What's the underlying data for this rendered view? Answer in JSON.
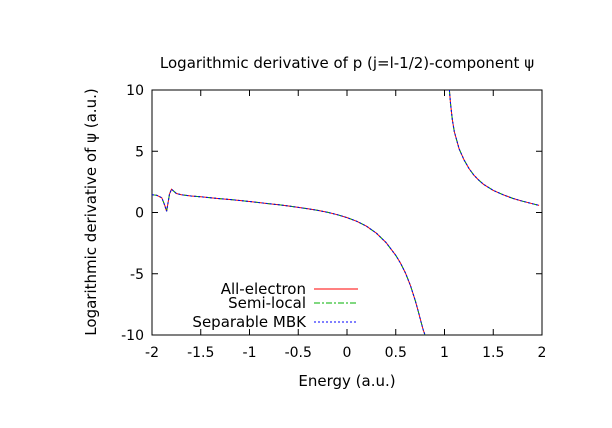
{
  "chart_data": {
    "type": "line",
    "title": "Logarithmic derivative of p (j=l-1/2)-component ψ",
    "xlabel": "Energy (a.u.)",
    "ylabel": "Logarithmic derivative of ψ (a.u.)",
    "xlim": [
      -2,
      2
    ],
    "ylim": [
      -10,
      10
    ],
    "xticks": [
      "-2",
      "-1.5",
      "-1",
      "-0.5",
      "0",
      "0.5",
      "1",
      "1.5",
      "2"
    ],
    "yticks": [
      "10",
      "5",
      "0",
      "-5",
      "-10"
    ],
    "grid": false,
    "legend_position": "bottom-left",
    "x": [
      -2.0,
      -1.95,
      -1.9,
      -1.87,
      -1.85,
      -1.82,
      -1.8,
      -1.75,
      -1.7,
      -1.6,
      -1.5,
      -1.4,
      -1.3,
      -1.2,
      -1.1,
      -1.0,
      -0.9,
      -0.8,
      -0.7,
      -0.6,
      -0.5,
      -0.4,
      -0.3,
      -0.2,
      -0.1,
      0.0,
      0.1,
      0.2,
      0.3,
      0.4,
      0.5,
      0.55,
      0.6,
      0.65,
      0.7,
      0.73,
      0.76,
      0.78,
      0.8,
      0.81,
      1.05,
      1.06,
      1.08,
      1.1,
      1.15,
      1.2,
      1.25,
      1.3,
      1.35,
      1.4,
      1.5,
      1.6,
      1.7,
      1.8,
      1.9,
      1.97
    ],
    "series": [
      {
        "name": "All-electron",
        "color": "#ff0000",
        "values": [
          1.45,
          1.4,
          1.2,
          0.6,
          0.1,
          1.5,
          1.9,
          1.55,
          1.45,
          1.35,
          1.28,
          1.2,
          1.13,
          1.06,
          0.98,
          0.9,
          0.81,
          0.72,
          0.63,
          0.53,
          0.42,
          0.3,
          0.17,
          0.02,
          -0.18,
          -0.42,
          -0.72,
          -1.12,
          -1.68,
          -2.45,
          -3.5,
          -4.15,
          -4.95,
          -5.95,
          -7.2,
          -8.05,
          -8.95,
          -9.55,
          -10.0,
          null,
          10.0,
          9.0,
          7.6,
          6.6,
          5.2,
          4.3,
          3.6,
          3.05,
          2.65,
          2.3,
          1.8,
          1.45,
          1.15,
          0.92,
          0.72,
          0.58
        ]
      },
      {
        "name": "Semi-local",
        "color": "#00b000",
        "values": [
          1.45,
          1.4,
          1.2,
          0.6,
          0.1,
          1.5,
          1.9,
          1.55,
          1.45,
          1.35,
          1.28,
          1.2,
          1.13,
          1.06,
          0.98,
          0.9,
          0.81,
          0.72,
          0.63,
          0.53,
          0.42,
          0.3,
          0.17,
          0.02,
          -0.18,
          -0.42,
          -0.72,
          -1.12,
          -1.68,
          -2.45,
          -3.5,
          -4.15,
          -4.95,
          -5.95,
          -7.2,
          -8.05,
          -8.95,
          -9.55,
          -10.0,
          null,
          10.0,
          9.0,
          7.6,
          6.6,
          5.2,
          4.3,
          3.6,
          3.05,
          2.65,
          2.3,
          1.8,
          1.45,
          1.15,
          0.92,
          0.72,
          0.58
        ]
      },
      {
        "name": "Separable MBK",
        "color": "#0000ff",
        "values": [
          1.45,
          1.4,
          1.2,
          0.6,
          0.1,
          1.5,
          1.9,
          1.55,
          1.45,
          1.35,
          1.28,
          1.2,
          1.13,
          1.06,
          0.98,
          0.9,
          0.81,
          0.72,
          0.63,
          0.53,
          0.42,
          0.3,
          0.17,
          0.02,
          -0.18,
          -0.42,
          -0.72,
          -1.12,
          -1.68,
          -2.45,
          -3.5,
          -4.15,
          -4.95,
          -5.95,
          -7.2,
          -8.05,
          -8.95,
          -9.55,
          -10.0,
          null,
          10.0,
          9.0,
          7.6,
          6.6,
          5.2,
          4.3,
          3.6,
          3.05,
          2.65,
          2.3,
          1.8,
          1.45,
          1.15,
          0.92,
          0.72,
          0.58
        ]
      }
    ]
  }
}
